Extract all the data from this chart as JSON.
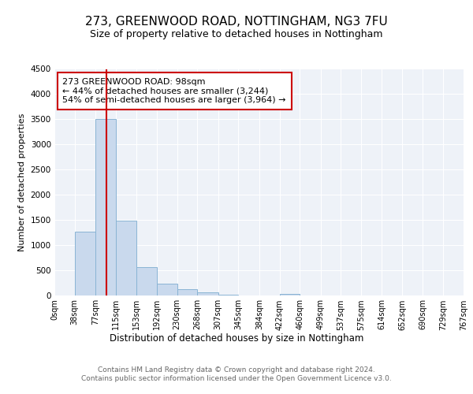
{
  "title": "273, GREENWOOD ROAD, NOTTINGHAM, NG3 7FU",
  "subtitle": "Size of property relative to detached houses in Nottingham",
  "xlabel": "Distribution of detached houses by size in Nottingham",
  "ylabel": "Number of detached properties",
  "bin_edges": [
    0,
    38,
    77,
    115,
    153,
    192,
    230,
    268,
    307,
    345,
    384,
    422,
    460,
    499,
    537,
    575,
    614,
    652,
    690,
    729,
    767
  ],
  "bar_heights": [
    0,
    1270,
    3500,
    1480,
    570,
    240,
    130,
    70,
    20,
    0,
    0,
    30,
    0,
    0,
    0,
    0,
    0,
    0,
    0,
    0
  ],
  "bar_color": "#c9d9ed",
  "bar_edge_color": "#8ab4d4",
  "property_line_x": 98,
  "red_line_color": "#cc0000",
  "annotation_text": "273 GREENWOOD ROAD: 98sqm\n← 44% of detached houses are smaller (3,244)\n54% of semi-detached houses are larger (3,964) →",
  "annotation_box_color": "#ffffff",
  "annotation_box_edge": "#cc0000",
  "ylim": [
    0,
    4500
  ],
  "yticks": [
    0,
    500,
    1000,
    1500,
    2000,
    2500,
    3000,
    3500,
    4000,
    4500
  ],
  "footer_line1": "Contains HM Land Registry data © Crown copyright and database right 2024.",
  "footer_line2": "Contains public sector information licensed under the Open Government Licence v3.0.",
  "bg_color": "#ffffff",
  "plot_bg_color": "#eef2f8",
  "grid_color": "#ffffff",
  "tick_label_fontsize": 7,
  "ylabel_fontsize": 8,
  "title_fontsize": 11,
  "subtitle_fontsize": 9
}
